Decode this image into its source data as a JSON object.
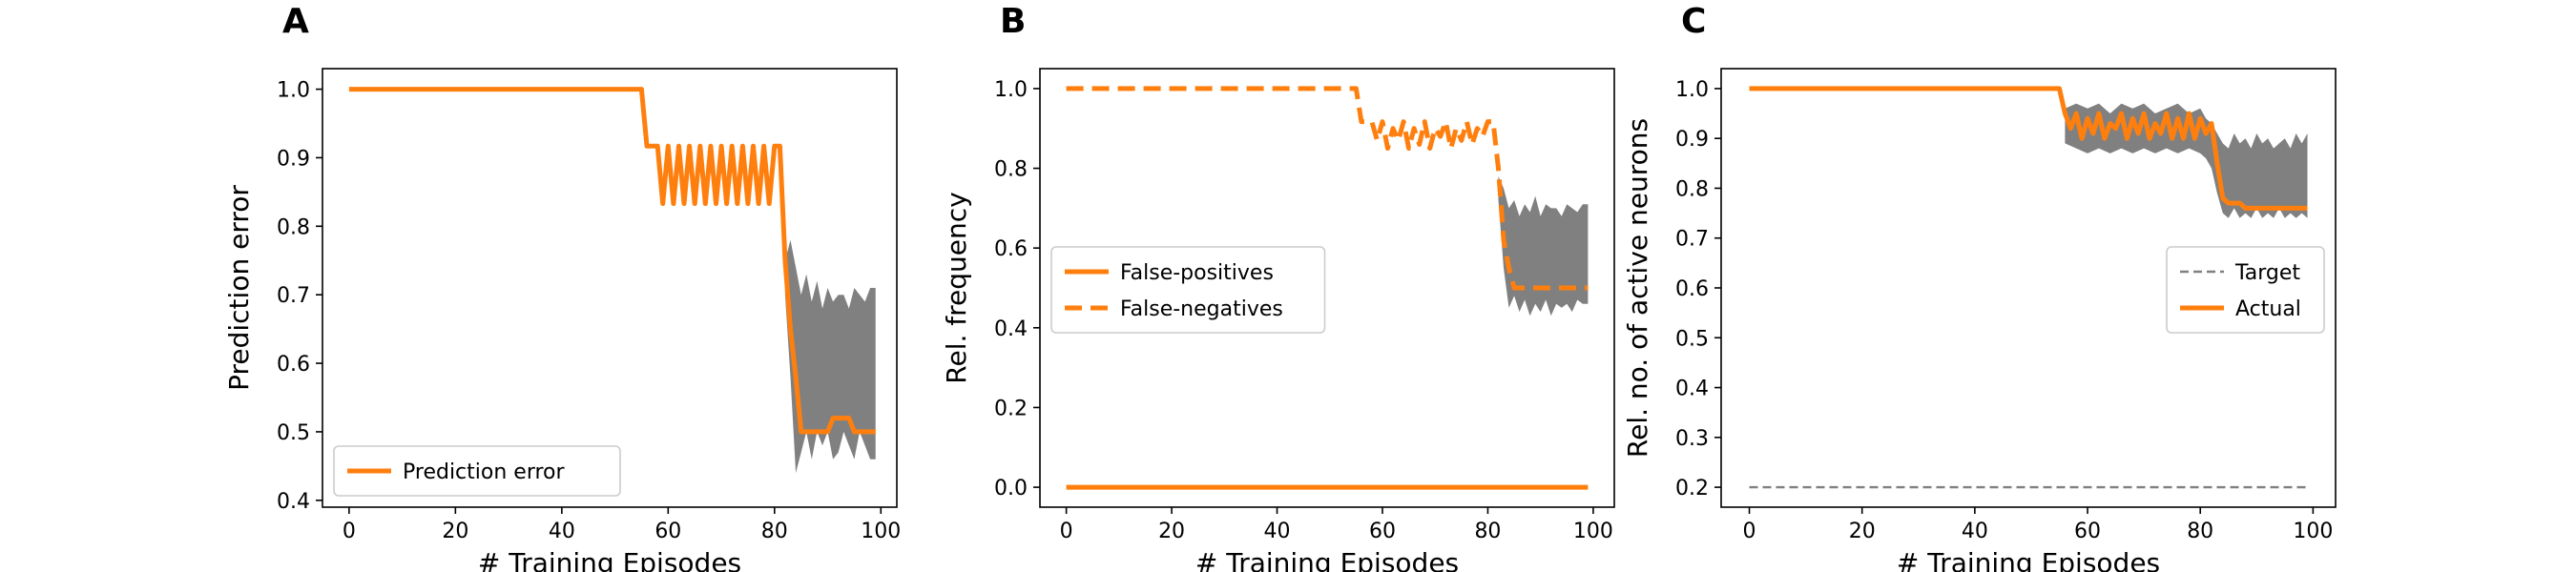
{
  "figure": {
    "panels": [
      "A",
      "B",
      "C"
    ]
  },
  "chart_data": [
    {
      "panel_label": "A",
      "type": "line",
      "xlabel": "# Training Episodes",
      "ylabel": "Prediction error",
      "xlim": [
        -5,
        103
      ],
      "ylim": [
        0.39,
        1.03
      ],
      "xticks": [
        0,
        20,
        40,
        60,
        80,
        100
      ],
      "yticks": [
        0.4,
        0.5,
        0.6,
        0.7,
        0.8,
        0.9,
        1.0
      ],
      "ytick_labels": [
        "0.4",
        "0.5",
        "0.6",
        "0.7",
        "0.8",
        "0.9",
        "1.0"
      ],
      "grid": false,
      "legend_position": "lower-left",
      "colors": {
        "line": "#ff7f0e",
        "band": "#808080"
      },
      "series": [
        {
          "name": "Prediction error",
          "style": "solid",
          "x": [
            0,
            55,
            56,
            58,
            59,
            60,
            61,
            62,
            63,
            64,
            65,
            66,
            67,
            68,
            69,
            70,
            71,
            72,
            73,
            74,
            75,
            76,
            77,
            78,
            79,
            80,
            81,
            82,
            83,
            84,
            85,
            86,
            87,
            88,
            89,
            90,
            91,
            92,
            93,
            94,
            95,
            96,
            97,
            98,
            99
          ],
          "y": [
            1.0,
            1.0,
            0.917,
            0.917,
            0.833,
            0.917,
            0.833,
            0.917,
            0.833,
            0.917,
            0.833,
            0.917,
            0.833,
            0.917,
            0.833,
            0.917,
            0.833,
            0.917,
            0.833,
            0.917,
            0.833,
            0.917,
            0.833,
            0.917,
            0.833,
            0.917,
            0.917,
            0.75,
            0.65,
            0.58,
            0.5,
            0.5,
            0.5,
            0.5,
            0.5,
            0.5,
            0.52,
            0.52,
            0.52,
            0.52,
            0.5,
            0.5,
            0.5,
            0.5,
            0.5
          ]
        }
      ],
      "band": {
        "x": [
          82,
          83,
          84,
          85,
          86,
          87,
          88,
          89,
          90,
          91,
          92,
          93,
          94,
          95,
          96,
          97,
          98,
          99
        ],
        "upper": [
          0.75,
          0.78,
          0.74,
          0.7,
          0.73,
          0.69,
          0.72,
          0.68,
          0.71,
          0.69,
          0.7,
          0.7,
          0.68,
          0.71,
          0.7,
          0.69,
          0.71,
          0.71
        ],
        "lower": [
          0.7,
          0.58,
          0.44,
          0.47,
          0.5,
          0.46,
          0.5,
          0.48,
          0.5,
          0.46,
          0.47,
          0.5,
          0.48,
          0.46,
          0.5,
          0.48,
          0.46,
          0.46
        ]
      }
    },
    {
      "panel_label": "B",
      "type": "line",
      "xlabel": "# Training Episodes",
      "ylabel": "Rel. frequency",
      "xlim": [
        -5,
        104
      ],
      "ylim": [
        -0.05,
        1.05
      ],
      "xticks": [
        0,
        20,
        40,
        60,
        80,
        100
      ],
      "yticks": [
        0.0,
        0.2,
        0.4,
        0.6,
        0.8,
        1.0
      ],
      "ytick_labels": [
        "0.0",
        "0.2",
        "0.4",
        "0.6",
        "0.8",
        "1.0"
      ],
      "grid": false,
      "legend_position": "center-left",
      "colors": {
        "line": "#ff7f0e",
        "band": "#808080"
      },
      "series": [
        {
          "name": "False-positives",
          "style": "solid",
          "x": [
            0,
            99
          ],
          "y": [
            0.0,
            0.0
          ]
        },
        {
          "name": "False-negatives",
          "style": "dashed",
          "x": [
            0,
            55,
            56,
            58,
            59,
            60,
            61,
            62,
            63,
            64,
            65,
            66,
            67,
            68,
            69,
            70,
            71,
            72,
            73,
            74,
            75,
            76,
            77,
            78,
            79,
            80,
            81,
            82,
            83,
            84,
            85,
            86,
            87,
            88,
            89,
            90,
            91,
            92,
            93,
            94,
            95,
            96,
            97,
            98,
            99
          ],
          "y": [
            1.0,
            1.0,
            0.917,
            0.917,
            0.87,
            0.917,
            0.85,
            0.9,
            0.87,
            0.917,
            0.85,
            0.9,
            0.86,
            0.917,
            0.85,
            0.9,
            0.88,
            0.917,
            0.85,
            0.9,
            0.87,
            0.917,
            0.86,
            0.9,
            0.88,
            0.917,
            0.917,
            0.8,
            0.62,
            0.55,
            0.5,
            0.5,
            0.5,
            0.5,
            0.5,
            0.5,
            0.5,
            0.5,
            0.5,
            0.5,
            0.5,
            0.5,
            0.5,
            0.5,
            0.5
          ]
        }
      ],
      "band": {
        "x": [
          82,
          83,
          84,
          85,
          86,
          87,
          88,
          89,
          90,
          91,
          92,
          93,
          94,
          95,
          96,
          97,
          98,
          99
        ],
        "upper": [
          0.78,
          0.75,
          0.7,
          0.72,
          0.68,
          0.71,
          0.69,
          0.73,
          0.68,
          0.71,
          0.7,
          0.7,
          0.68,
          0.71,
          0.7,
          0.69,
          0.71,
          0.71
        ],
        "lower": [
          0.72,
          0.55,
          0.45,
          0.48,
          0.44,
          0.47,
          0.43,
          0.46,
          0.44,
          0.47,
          0.43,
          0.46,
          0.45,
          0.46,
          0.44,
          0.47,
          0.46,
          0.46
        ]
      }
    },
    {
      "panel_label": "C",
      "type": "line",
      "xlabel": "# Training Episodes",
      "ylabel": "Rel. no. of active neurons",
      "xlim": [
        -5,
        104
      ],
      "ylim": [
        0.16,
        1.04
      ],
      "xticks": [
        0,
        20,
        40,
        60,
        80,
        100
      ],
      "yticks": [
        0.2,
        0.3,
        0.4,
        0.5,
        0.6,
        0.7,
        0.8,
        0.9,
        1.0
      ],
      "ytick_labels": [
        "0.2",
        "0.3",
        "0.4",
        "0.5",
        "0.6",
        "0.7",
        "0.8",
        "0.9",
        "1.0"
      ],
      "grid": false,
      "legend_position": "center-right",
      "colors": {
        "line": "#ff7f0e",
        "target": "#808080",
        "band": "#808080"
      },
      "series": [
        {
          "name": "Target",
          "style": "thin-dashed-gray",
          "x": [
            0,
            99
          ],
          "y": [
            0.2,
            0.2
          ]
        },
        {
          "name": "Actual",
          "style": "solid",
          "x": [
            0,
            55,
            56,
            57,
            58,
            59,
            60,
            61,
            62,
            63,
            64,
            65,
            66,
            67,
            68,
            69,
            70,
            71,
            72,
            73,
            74,
            75,
            76,
            77,
            78,
            79,
            80,
            81,
            82,
            83,
            84,
            85,
            86,
            87,
            88,
            89,
            90,
            91,
            92,
            93,
            94,
            95,
            96,
            97,
            98,
            99
          ],
          "y": [
            1.0,
            1.0,
            0.95,
            0.92,
            0.95,
            0.9,
            0.94,
            0.91,
            0.95,
            0.9,
            0.93,
            0.92,
            0.95,
            0.9,
            0.94,
            0.91,
            0.95,
            0.9,
            0.93,
            0.91,
            0.95,
            0.9,
            0.94,
            0.9,
            0.95,
            0.9,
            0.94,
            0.91,
            0.93,
            0.85,
            0.78,
            0.77,
            0.77,
            0.77,
            0.76,
            0.76,
            0.76,
            0.76,
            0.76,
            0.76,
            0.76,
            0.76,
            0.76,
            0.76,
            0.76,
            0.76
          ]
        }
      ],
      "band": {
        "x": [
          56,
          58,
          60,
          62,
          64,
          66,
          68,
          70,
          72,
          74,
          76,
          78,
          80,
          81,
          82,
          83,
          84,
          85,
          86,
          87,
          88,
          89,
          90,
          91,
          92,
          93,
          94,
          95,
          96,
          97,
          98,
          99
        ],
        "upper": [
          0.96,
          0.97,
          0.96,
          0.97,
          0.95,
          0.97,
          0.96,
          0.97,
          0.95,
          0.96,
          0.97,
          0.95,
          0.96,
          0.94,
          0.93,
          0.91,
          0.89,
          0.88,
          0.91,
          0.89,
          0.9,
          0.88,
          0.91,
          0.89,
          0.9,
          0.88,
          0.89,
          0.9,
          0.88,
          0.91,
          0.89,
          0.91
        ],
        "lower": [
          0.89,
          0.88,
          0.87,
          0.88,
          0.87,
          0.88,
          0.87,
          0.88,
          0.87,
          0.88,
          0.87,
          0.88,
          0.87,
          0.86,
          0.84,
          0.79,
          0.75,
          0.74,
          0.76,
          0.74,
          0.75,
          0.74,
          0.76,
          0.74,
          0.75,
          0.74,
          0.76,
          0.74,
          0.75,
          0.74,
          0.75,
          0.74
        ]
      }
    }
  ]
}
